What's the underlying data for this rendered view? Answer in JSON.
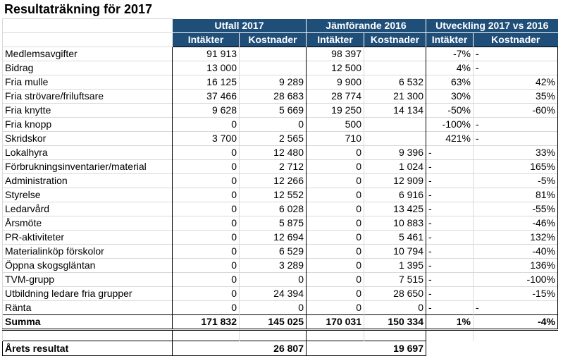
{
  "title": "Resultaträkning för 2017",
  "groups": {
    "utfall": "Utfall 2017",
    "jamforande": "Jämförande 2016",
    "utveckling": "Utveckling 2017 vs 2016"
  },
  "subheaders": {
    "intakter": "Intäkter",
    "kostnader": "Kostnader"
  },
  "rows": [
    {
      "label": "Medlemsavgifter",
      "ui": "91 913",
      "uk": "",
      "ji": "98 397",
      "jk": "",
      "vi": "-7%",
      "vk": "-"
    },
    {
      "label": "Bidrag",
      "ui": "13 000",
      "uk": "",
      "ji": "12 500",
      "jk": "",
      "vi": "4%",
      "vk": "-"
    },
    {
      "label": "Fria mulle",
      "ui": "16 125",
      "uk": "9 289",
      "ji": "9 900",
      "jk": "6 532",
      "vi": "63%",
      "vk": "42%"
    },
    {
      "label": "Fria strövare/friluftsare",
      "ui": "37 466",
      "uk": "28 683",
      "ji": "28 774",
      "jk": "21 300",
      "vi": "30%",
      "vk": "35%"
    },
    {
      "label": "Fria knytte",
      "ui": "9 628",
      "uk": "5 669",
      "ji": "19 250",
      "jk": "14 134",
      "vi": "-50%",
      "vk": "-60%"
    },
    {
      "label": "Fria knopp",
      "ui": "0",
      "uk": "0",
      "ji": "500",
      "jk": "",
      "vi": "-100%",
      "vk": "-"
    },
    {
      "label": "Skridskor",
      "ui": "3 700",
      "uk": "2 565",
      "ji": "710",
      "jk": "",
      "vi": "421%",
      "vk": "-"
    },
    {
      "label": "Lokalhyra",
      "ui": "0",
      "uk": "12 480",
      "ji": "0",
      "jk": "9 396",
      "vi": "-",
      "vk": "33%"
    },
    {
      "label": "Förbrukningsinventarier/material",
      "ui": "0",
      "uk": "2 712",
      "ji": "0",
      "jk": "1 024",
      "vi": "-",
      "vk": "165%"
    },
    {
      "label": "Administration",
      "ui": "0",
      "uk": "12 266",
      "ji": "0",
      "jk": "12 909",
      "vi": "-",
      "vk": "-5%"
    },
    {
      "label": "Styrelse",
      "ui": "0",
      "uk": "12 552",
      "ji": "0",
      "jk": "6 916",
      "vi": "-",
      "vk": "81%"
    },
    {
      "label": "Ledarvård",
      "ui": "0",
      "uk": "6 028",
      "ji": "0",
      "jk": "13 425",
      "vi": "-",
      "vk": "-55%"
    },
    {
      "label": "Årsmöte",
      "ui": "0",
      "uk": "5 875",
      "ji": "0",
      "jk": "10 883",
      "vi": "-",
      "vk": "-46%"
    },
    {
      "label": "PR-aktiviteter",
      "ui": "0",
      "uk": "12 694",
      "ji": "0",
      "jk": "5 461",
      "vi": "-",
      "vk": "132%"
    },
    {
      "label": "Materialinköp förskolor",
      "ui": "0",
      "uk": "6 529",
      "ji": "0",
      "jk": "10 794",
      "vi": "-",
      "vk": "-40%"
    },
    {
      "label": "Öppna skogsgläntan",
      "ui": "0",
      "uk": "3 289",
      "ji": "0",
      "jk": "1 395",
      "vi": "-",
      "vk": "136%"
    },
    {
      "label": "TVM-grupp",
      "ui": "0",
      "uk": "0",
      "ji": "0",
      "jk": "7 515",
      "vi": "-",
      "vk": "-100%"
    },
    {
      "label": "Utbildning ledare fria grupper",
      "ui": "0",
      "uk": "24 394",
      "ji": "0",
      "jk": "28 650",
      "vi": "-",
      "vk": "-15%"
    },
    {
      "label": "Ränta",
      "ui": "0",
      "uk": "0",
      "ji": "0",
      "jk": "0",
      "vi": "-",
      "vk": "-"
    }
  ],
  "summa": {
    "label": "Summa",
    "ui": "171 832",
    "uk": "145 025",
    "ji": "170 031",
    "jk": "150 334",
    "vi": "1%",
    "vk": "-4%"
  },
  "resultat": {
    "label": "Årets resultat",
    "u": "26 807",
    "j": "19 697"
  }
}
